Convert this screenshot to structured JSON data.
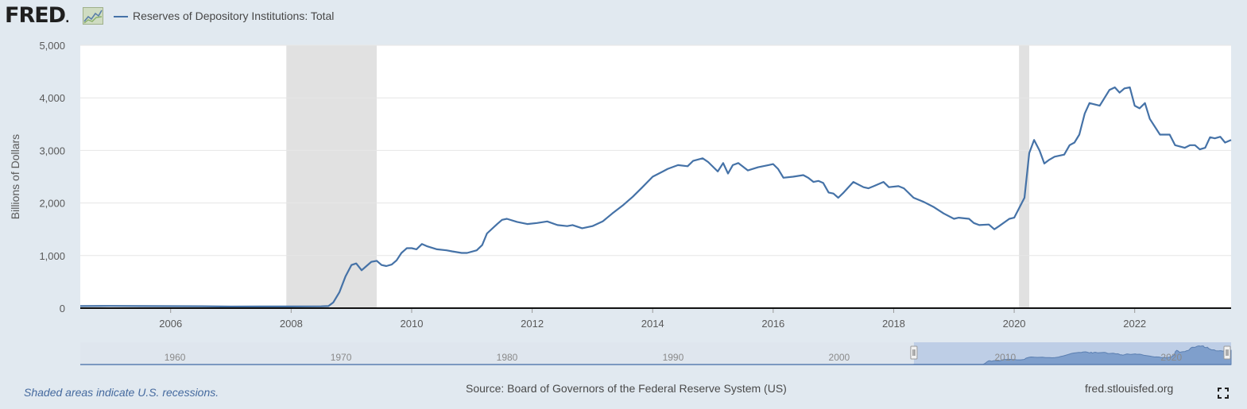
{
  "logo": {
    "text": "FRED",
    "mark": "."
  },
  "legend": {
    "series_name": "Reserves of Depository Institutions: Total"
  },
  "footer": {
    "recession_note": "Shaded areas indicate U.S. recessions.",
    "source": "Source: Board of Governors of the Federal Reserve System (US)",
    "site": "fred.stlouisfed.org"
  },
  "colors": {
    "line": "#4572a7",
    "recession": "#e1e1e1",
    "background": "#e1e9f0",
    "plot": "#ffffff"
  },
  "icons": {
    "fullscreen": "fullscreen-icon",
    "logo_mark": "line-graph-icon"
  },
  "chart_data": {
    "type": "line",
    "ylabel": "Billions of Dollars",
    "xlim": [
      2004.5,
      2023.6
    ],
    "ylim": [
      0,
      5000
    ],
    "yticks": [
      0,
      1000,
      2000,
      3000,
      4000,
      5000
    ],
    "ytick_labels": [
      "0",
      "1,000",
      "2,000",
      "3,000",
      "4,000",
      "5,000"
    ],
    "xticks": [
      2006,
      2008,
      2010,
      2012,
      2014,
      2016,
      2018,
      2020,
      2022
    ],
    "xtick_labels": [
      "2006",
      "2008",
      "2010",
      "2012",
      "2014",
      "2016",
      "2018",
      "2020",
      "2022"
    ],
    "grid": true,
    "recessions": [
      [
        2007.92,
        2009.42
      ],
      [
        2020.08,
        2020.25
      ]
    ],
    "series": [
      {
        "name": "Reserves of Depository Institutions: Total",
        "x": [
          2004.5,
          2005.0,
          2005.5,
          2006.0,
          2006.5,
          2007.0,
          2007.5,
          2008.0,
          2008.5,
          2008.62,
          2008.7,
          2008.8,
          2008.9,
          2009.0,
          2009.08,
          2009.17,
          2009.25,
          2009.33,
          2009.42,
          2009.5,
          2009.58,
          2009.67,
          2009.75,
          2009.83,
          2009.92,
          2010.0,
          2010.08,
          2010.17,
          2010.25,
          2010.42,
          2010.58,
          2010.67,
          2010.83,
          2010.92,
          2011.08,
          2011.17,
          2011.25,
          2011.42,
          2011.5,
          2011.58,
          2011.75,
          2011.92,
          2012.08,
          2012.25,
          2012.42,
          2012.58,
          2012.67,
          2012.83,
          2013.0,
          2013.17,
          2013.33,
          2013.5,
          2013.67,
          2013.83,
          2014.0,
          2014.17,
          2014.25,
          2014.42,
          2014.58,
          2014.67,
          2014.83,
          2014.92,
          2015.08,
          2015.17,
          2015.25,
          2015.33,
          2015.42,
          2015.58,
          2015.75,
          2015.92,
          2016.0,
          2016.08,
          2016.17,
          2016.33,
          2016.5,
          2016.58,
          2016.67,
          2016.75,
          2016.83,
          2016.92,
          2017.0,
          2017.08,
          2017.17,
          2017.33,
          2017.5,
          2017.58,
          2017.67,
          2017.83,
          2017.92,
          2018.08,
          2018.17,
          2018.33,
          2018.5,
          2018.67,
          2018.83,
          2019.0,
          2019.08,
          2019.25,
          2019.33,
          2019.42,
          2019.58,
          2019.67,
          2019.75,
          2019.92,
          2020.0,
          2020.17,
          2020.25,
          2020.33,
          2020.42,
          2020.5,
          2020.58,
          2020.67,
          2020.83,
          2020.92,
          2021.0,
          2021.08,
          2021.17,
          2021.25,
          2021.42,
          2021.5,
          2021.58,
          2021.67,
          2021.75,
          2021.83,
          2021.92,
          2022.0,
          2022.08,
          2022.17,
          2022.25,
          2022.42,
          2022.58,
          2022.67,
          2022.83,
          2022.92,
          2023.0,
          2023.08,
          2023.17,
          2023.25,
          2023.33,
          2023.42,
          2023.5,
          2023.6
        ],
        "values": [
          40,
          42,
          40,
          38,
          36,
          30,
          32,
          32,
          35,
          40,
          110,
          300,
          600,
          820,
          850,
          720,
          800,
          880,
          900,
          820,
          800,
          830,
          910,
          1050,
          1140,
          1140,
          1120,
          1220,
          1180,
          1120,
          1100,
          1080,
          1050,
          1050,
          1100,
          1200,
          1420,
          1600,
          1680,
          1700,
          1640,
          1600,
          1620,
          1650,
          1580,
          1560,
          1580,
          1520,
          1560,
          1650,
          1800,
          1950,
          2120,
          2300,
          2500,
          2600,
          2650,
          2720,
          2700,
          2800,
          2850,
          2780,
          2600,
          2760,
          2560,
          2720,
          2760,
          2620,
          2680,
          2720,
          2740,
          2650,
          2480,
          2500,
          2530,
          2480,
          2400,
          2420,
          2380,
          2200,
          2180,
          2100,
          2200,
          2400,
          2300,
          2280,
          2320,
          2400,
          2300,
          2320,
          2280,
          2100,
          2020,
          1920,
          1800,
          1700,
          1720,
          1700,
          1620,
          1580,
          1590,
          1500,
          1560,
          1700,
          1720,
          2100,
          2950,
          3200,
          3000,
          2750,
          2820,
          2880,
          2920,
          3100,
          3150,
          3300,
          3700,
          3900,
          3850,
          4000,
          4150,
          4200,
          4100,
          4180,
          4200,
          3850,
          3800,
          3900,
          3600,
          3300,
          3300,
          3100,
          3050,
          3100,
          3100,
          3020,
          3050,
          3250,
          3230,
          3260,
          3150,
          3200
        ]
      }
    ]
  },
  "navigator": {
    "tick_labels": [
      "1960",
      "1970",
      "1980",
      "1990",
      "2000",
      "2010",
      "2020"
    ],
    "range_start": 2004.5,
    "range_end": 2023.6
  }
}
